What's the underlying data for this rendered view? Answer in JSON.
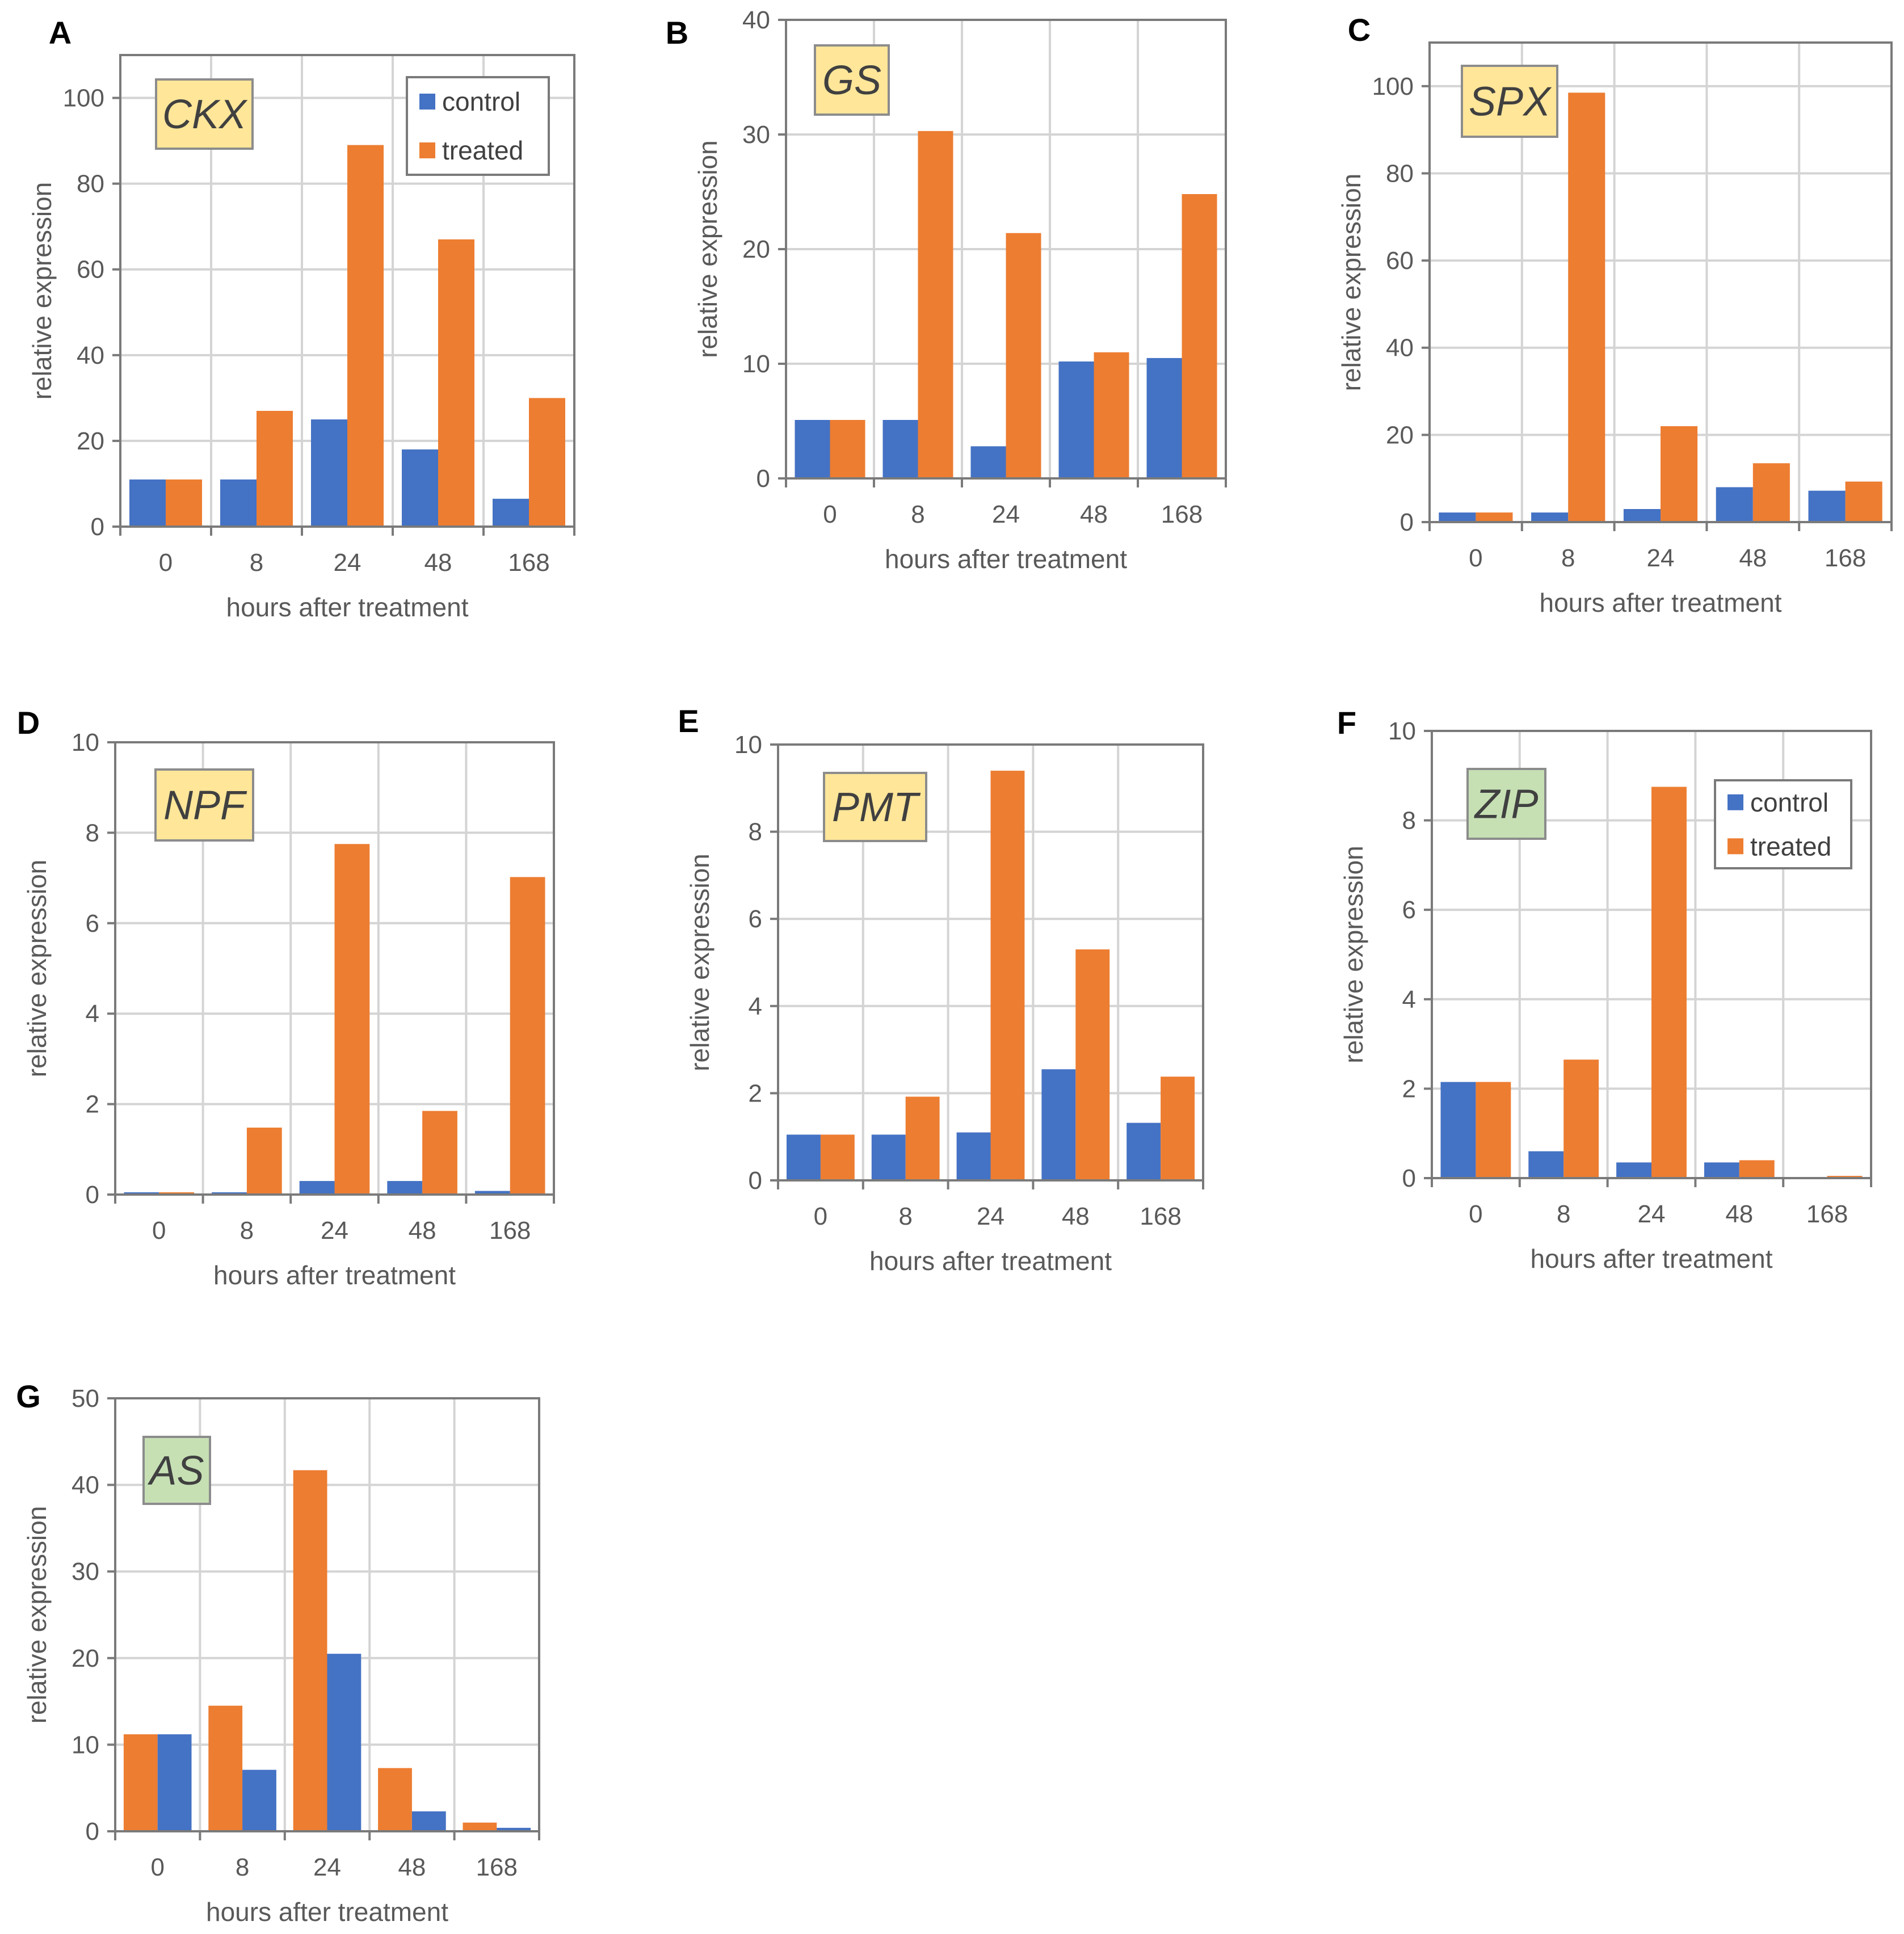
{
  "colors": {
    "control": "#4472C4",
    "treated": "#ED7D31",
    "gene_box_yellow": "#FFE699",
    "gene_box_green": "#C6E0B4"
  },
  "chart_data": [
    {
      "type": "bar",
      "panel": "A",
      "gene": "CKX",
      "gene_box": "yellow",
      "categories": [
        "0",
        "8",
        "24",
        "48",
        "168"
      ],
      "series": [
        {
          "name": "control",
          "values": [
            11,
            11,
            25,
            18,
            6.5
          ]
        },
        {
          "name": "treated",
          "values": [
            11,
            27,
            89,
            67,
            30
          ]
        }
      ],
      "series_order": [
        "control",
        "treated"
      ],
      "xlabel": "hours after treatment",
      "ylabel": "relative expression",
      "ylim": [
        0,
        110
      ],
      "yticks": [
        0,
        20,
        40,
        60,
        80,
        100
      ],
      "legend": {
        "entries": [
          "control",
          "treated"
        ],
        "placement": "top-right"
      }
    },
    {
      "type": "bar",
      "panel": "B",
      "gene": "GS",
      "gene_box": "yellow",
      "categories": [
        "0",
        "8",
        "24",
        "48",
        "168"
      ],
      "series": [
        {
          "name": "control",
          "values": [
            5.1,
            5.1,
            2.8,
            10.2,
            10.5
          ]
        },
        {
          "name": "treated",
          "values": [
            5.1,
            30.3,
            21.4,
            11.0,
            24.8
          ]
        }
      ],
      "series_order": [
        "control",
        "treated"
      ],
      "xlabel": "hours after treatment",
      "ylabel": "relative expression",
      "ylim": [
        0,
        40
      ],
      "yticks": [
        0,
        10,
        20,
        30,
        40
      ]
    },
    {
      "type": "bar",
      "panel": "C",
      "gene": "SPX",
      "gene_box": "yellow",
      "categories": [
        "0",
        "8",
        "24",
        "48",
        "168"
      ],
      "series": [
        {
          "name": "control",
          "values": [
            2.2,
            2.2,
            3.0,
            8.0,
            7.2
          ]
        },
        {
          "name": "treated",
          "values": [
            2.2,
            98.5,
            22.0,
            13.5,
            9.3
          ]
        }
      ],
      "series_order": [
        "control",
        "treated"
      ],
      "xlabel": "hours after treatment",
      "ylabel": "relative expression",
      "ylim": [
        0,
        110
      ],
      "yticks": [
        0,
        20,
        40,
        60,
        80,
        100
      ]
    },
    {
      "type": "bar",
      "panel": "D",
      "gene": "NPF",
      "gene_box": "yellow",
      "categories": [
        "0",
        "8",
        "24",
        "48",
        "168"
      ],
      "series": [
        {
          "name": "control",
          "values": [
            0.05,
            0.05,
            0.3,
            0.3,
            0.08
          ]
        },
        {
          "name": "treated",
          "values": [
            0.05,
            1.48,
            7.75,
            1.85,
            7.02
          ]
        }
      ],
      "series_order": [
        "control",
        "treated"
      ],
      "xlabel": "hours after treatment",
      "ylabel": "relative expression",
      "ylim": [
        0,
        10
      ],
      "yticks": [
        0,
        2,
        4,
        6,
        8,
        10
      ]
    },
    {
      "type": "bar",
      "panel": "E",
      "gene": "PMT",
      "gene_box": "yellow",
      "categories": [
        "0",
        "8",
        "24",
        "48",
        "168"
      ],
      "series": [
        {
          "name": "control",
          "values": [
            1.05,
            1.05,
            1.1,
            2.55,
            1.32
          ]
        },
        {
          "name": "treated",
          "values": [
            1.05,
            1.92,
            9.4,
            5.3,
            2.38
          ]
        }
      ],
      "series_order": [
        "control",
        "treated"
      ],
      "xlabel": "hours after treatment",
      "ylabel": "relative expression",
      "ylim": [
        0,
        10
      ],
      "yticks": [
        0,
        2,
        4,
        6,
        8,
        10
      ]
    },
    {
      "type": "bar",
      "panel": "F",
      "gene": "ZIP",
      "gene_box": "green",
      "categories": [
        "0",
        "8",
        "24",
        "48",
        "168"
      ],
      "series": [
        {
          "name": "control",
          "values": [
            2.15,
            0.6,
            0.35,
            0.35,
            0.0
          ]
        },
        {
          "name": "treated",
          "values": [
            2.15,
            2.65,
            8.75,
            0.4,
            0.05
          ]
        }
      ],
      "series_order": [
        "control",
        "treated"
      ],
      "xlabel": "hours after treatment",
      "ylabel": "relative expression",
      "ylim": [
        0,
        10
      ],
      "yticks": [
        0,
        2,
        4,
        6,
        8,
        10
      ],
      "legend": {
        "entries": [
          "control",
          "treated"
        ],
        "placement": "top-right"
      }
    },
    {
      "type": "bar",
      "panel": "G",
      "gene": "AS",
      "gene_box": "green",
      "categories": [
        "0",
        "8",
        "24",
        "48",
        "168"
      ],
      "series": [
        {
          "name": "control",
          "values": [
            11.2,
            7.1,
            20.5,
            2.3,
            0.4
          ]
        },
        {
          "name": "treated",
          "values": [
            11.2,
            14.5,
            41.7,
            7.3,
            1.0
          ]
        }
      ],
      "series_order": [
        "treated",
        "control"
      ],
      "xlabel": "hours after treatment",
      "ylabel": "relative expression",
      "ylim": [
        0,
        50
      ],
      "yticks": [
        0,
        10,
        20,
        30,
        40,
        50
      ]
    }
  ]
}
